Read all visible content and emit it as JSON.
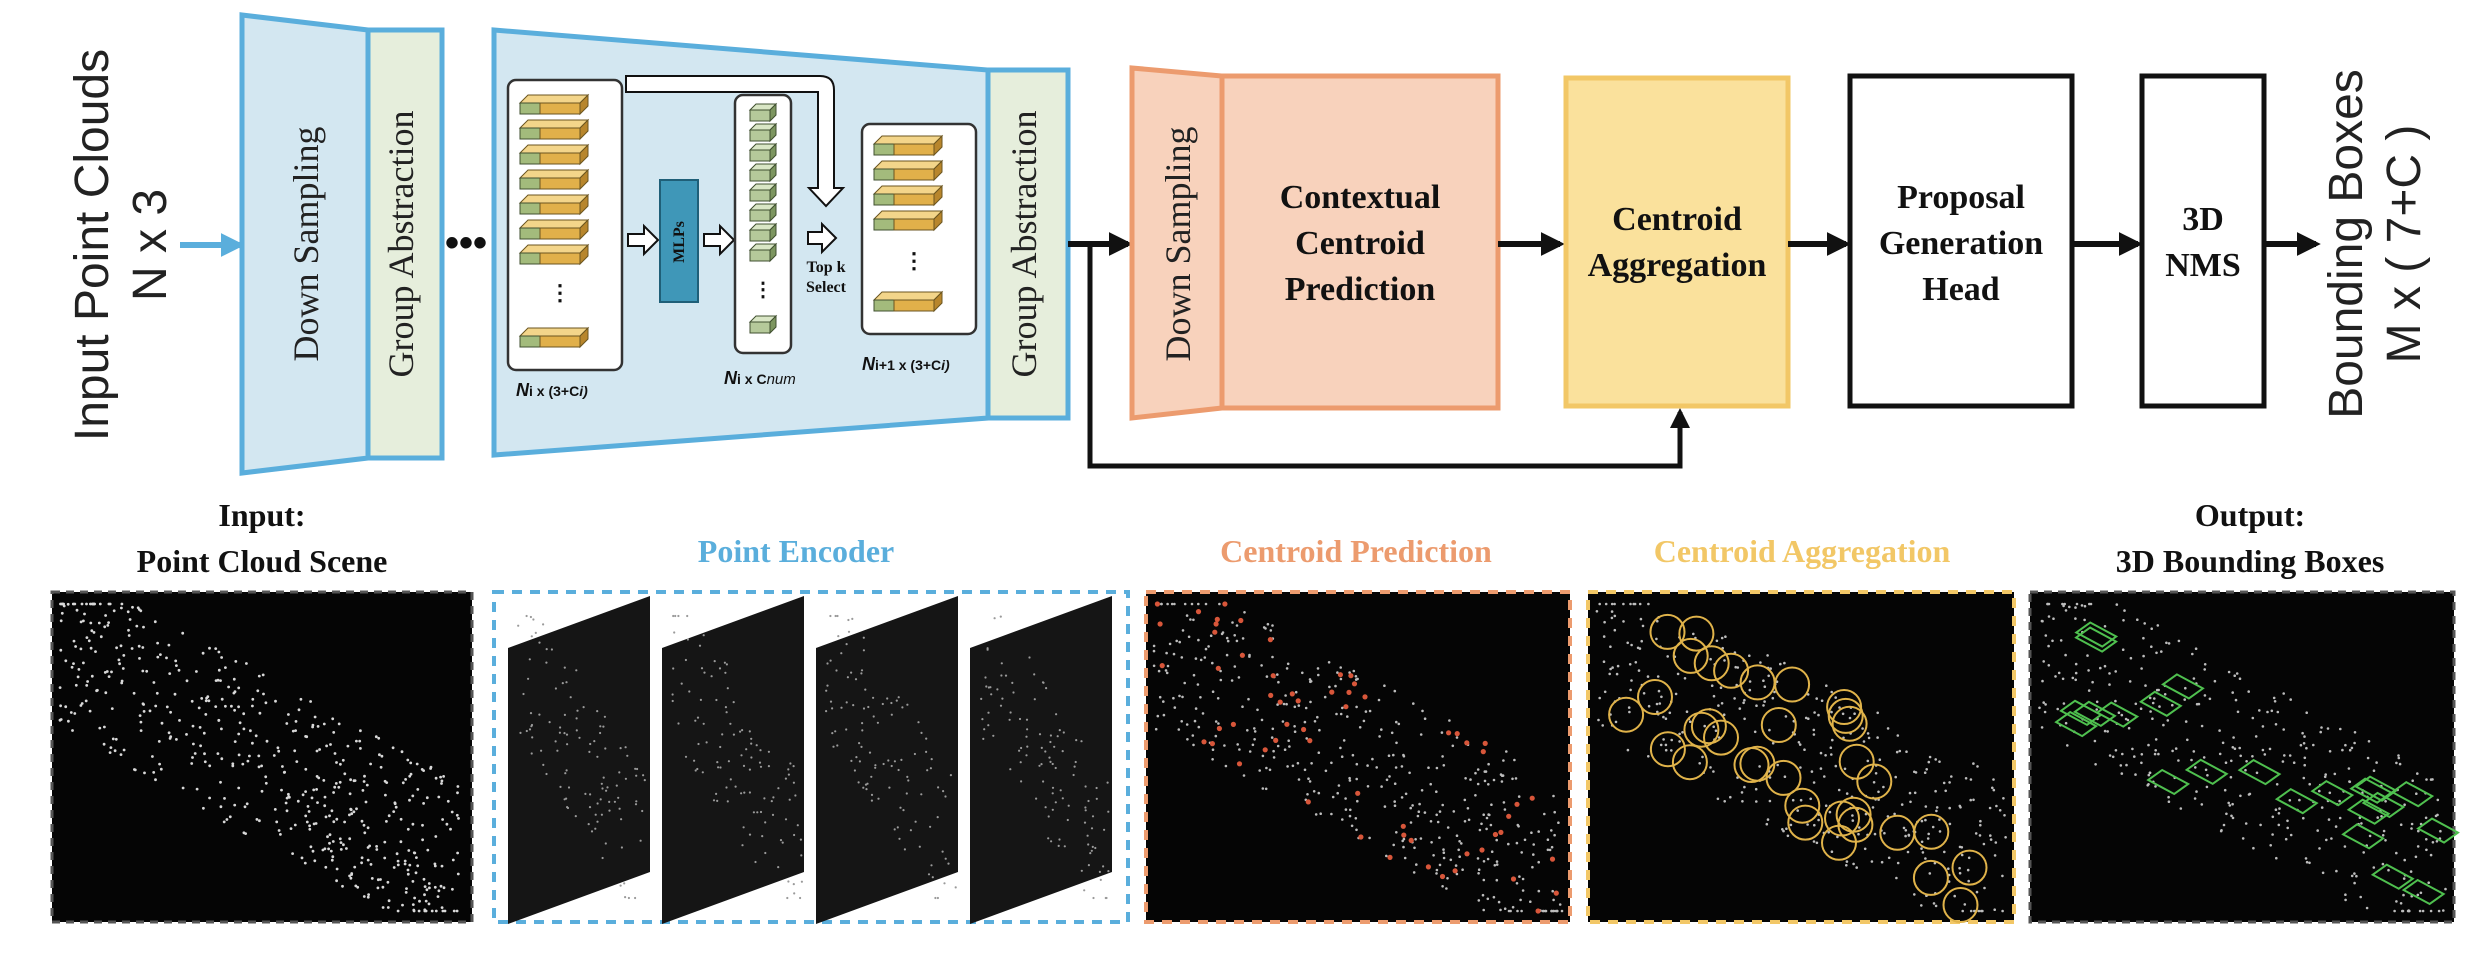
{
  "input_label": {
    "line1": "Input Point Clouds",
    "line2": "N x 3"
  },
  "output_label": {
    "line1": "Bounding Boxes",
    "line2": "M x ( 7+C )"
  },
  "encoder_block1": {
    "down": "Down Sampling",
    "group": "Group Abstraction"
  },
  "ellipsis": "•••",
  "encoder_block2": {
    "down_label_n": "N",
    "down_label": "i x (3+C",
    "down_label_close": "i)",
    "mlps": "MLPs",
    "mid_label_n": "N",
    "mid_label": "i x C",
    "mid_label_sub": "num",
    "topk": [
      "Top k",
      "Select"
    ],
    "out_label_n": "N",
    "out_label": "i+1 x (3+C",
    "out_label_close": "i)",
    "group": "Group Abstraction"
  },
  "centroid_prediction_block": {
    "down": "Down Sampling",
    "title": [
      "Contextual",
      "Centroid",
      "Prediction"
    ]
  },
  "centroid_aggregation_block": {
    "title": [
      "Centroid",
      "Aggregation"
    ]
  },
  "proposal_block": {
    "title": [
      "Proposal",
      "Generation",
      "Head"
    ]
  },
  "nms_block": {
    "title": [
      "3D",
      "NMS"
    ]
  },
  "panels": [
    {
      "title": [
        "Input:",
        "Point Cloud Scene"
      ],
      "color": "#111111"
    },
    {
      "title": [
        "Point Encoder"
      ],
      "color": "#5aaedc"
    },
    {
      "title": [
        "Centroid Prediction"
      ],
      "color": "#ec9b6e"
    },
    {
      "title": [
        "Centroid Aggregation"
      ],
      "color": "#f2c766"
    },
    {
      "title": [
        "Output:",
        "3D Bounding Boxes"
      ],
      "color": "#111111"
    }
  ],
  "colors": {
    "blue_fill": "#d3e7f1",
    "blue_stroke": "#5aaedc",
    "group_fill": "#e6eedc",
    "orange_fill": "#f8d2bc",
    "orange_stroke": "#ec9b6e",
    "yellow_fill": "#fae19c",
    "yellow_stroke": "#f2c766",
    "box_gold": "#e0b34a",
    "box_green": "#8fae6a",
    "mlp_fill": "#3f97b8"
  }
}
